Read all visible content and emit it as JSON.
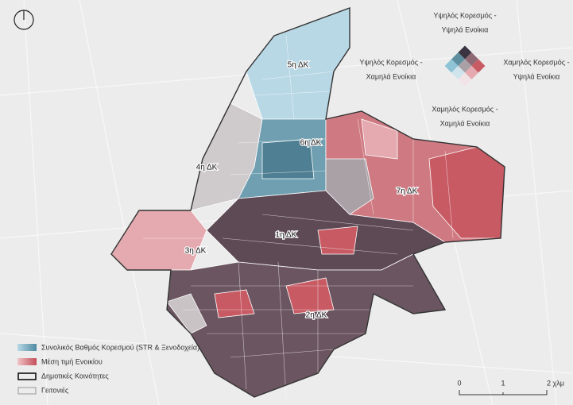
{
  "legend_bivariate": {
    "high_high": [
      "Υψηλός Κορεσμός -",
      "Υψηλά Ενοίκια"
    ],
    "high_low": [
      "Υψηλός Κορεσμός -",
      "Χαμηλά Ενοίκια"
    ],
    "low_high": [
      "Χαμηλός Κορεσμός -",
      "Υψηλά Ενοίκια"
    ],
    "low_low": [
      "Χαμηλός Κορεσμός -",
      "Χαμηλά Ενοίκια"
    ]
  },
  "districts": [
    "1η ΔΚ",
    "2η ΔΚ",
    "3η ΔΚ",
    "4η ΔΚ",
    "5η ΔΚ",
    "6η ΔΚ",
    "7η ΔΚ"
  ],
  "legend": [
    "Συνολικός Βαθμός Κορεσμού (STR & Ξενοδοχεία)",
    "Μέση τιμή Ενοικίου",
    "Δημοτικές Κοινότητες",
    "Γειτονιές"
  ],
  "scale": [
    "0",
    "1",
    "2 χλμ"
  ]
}
